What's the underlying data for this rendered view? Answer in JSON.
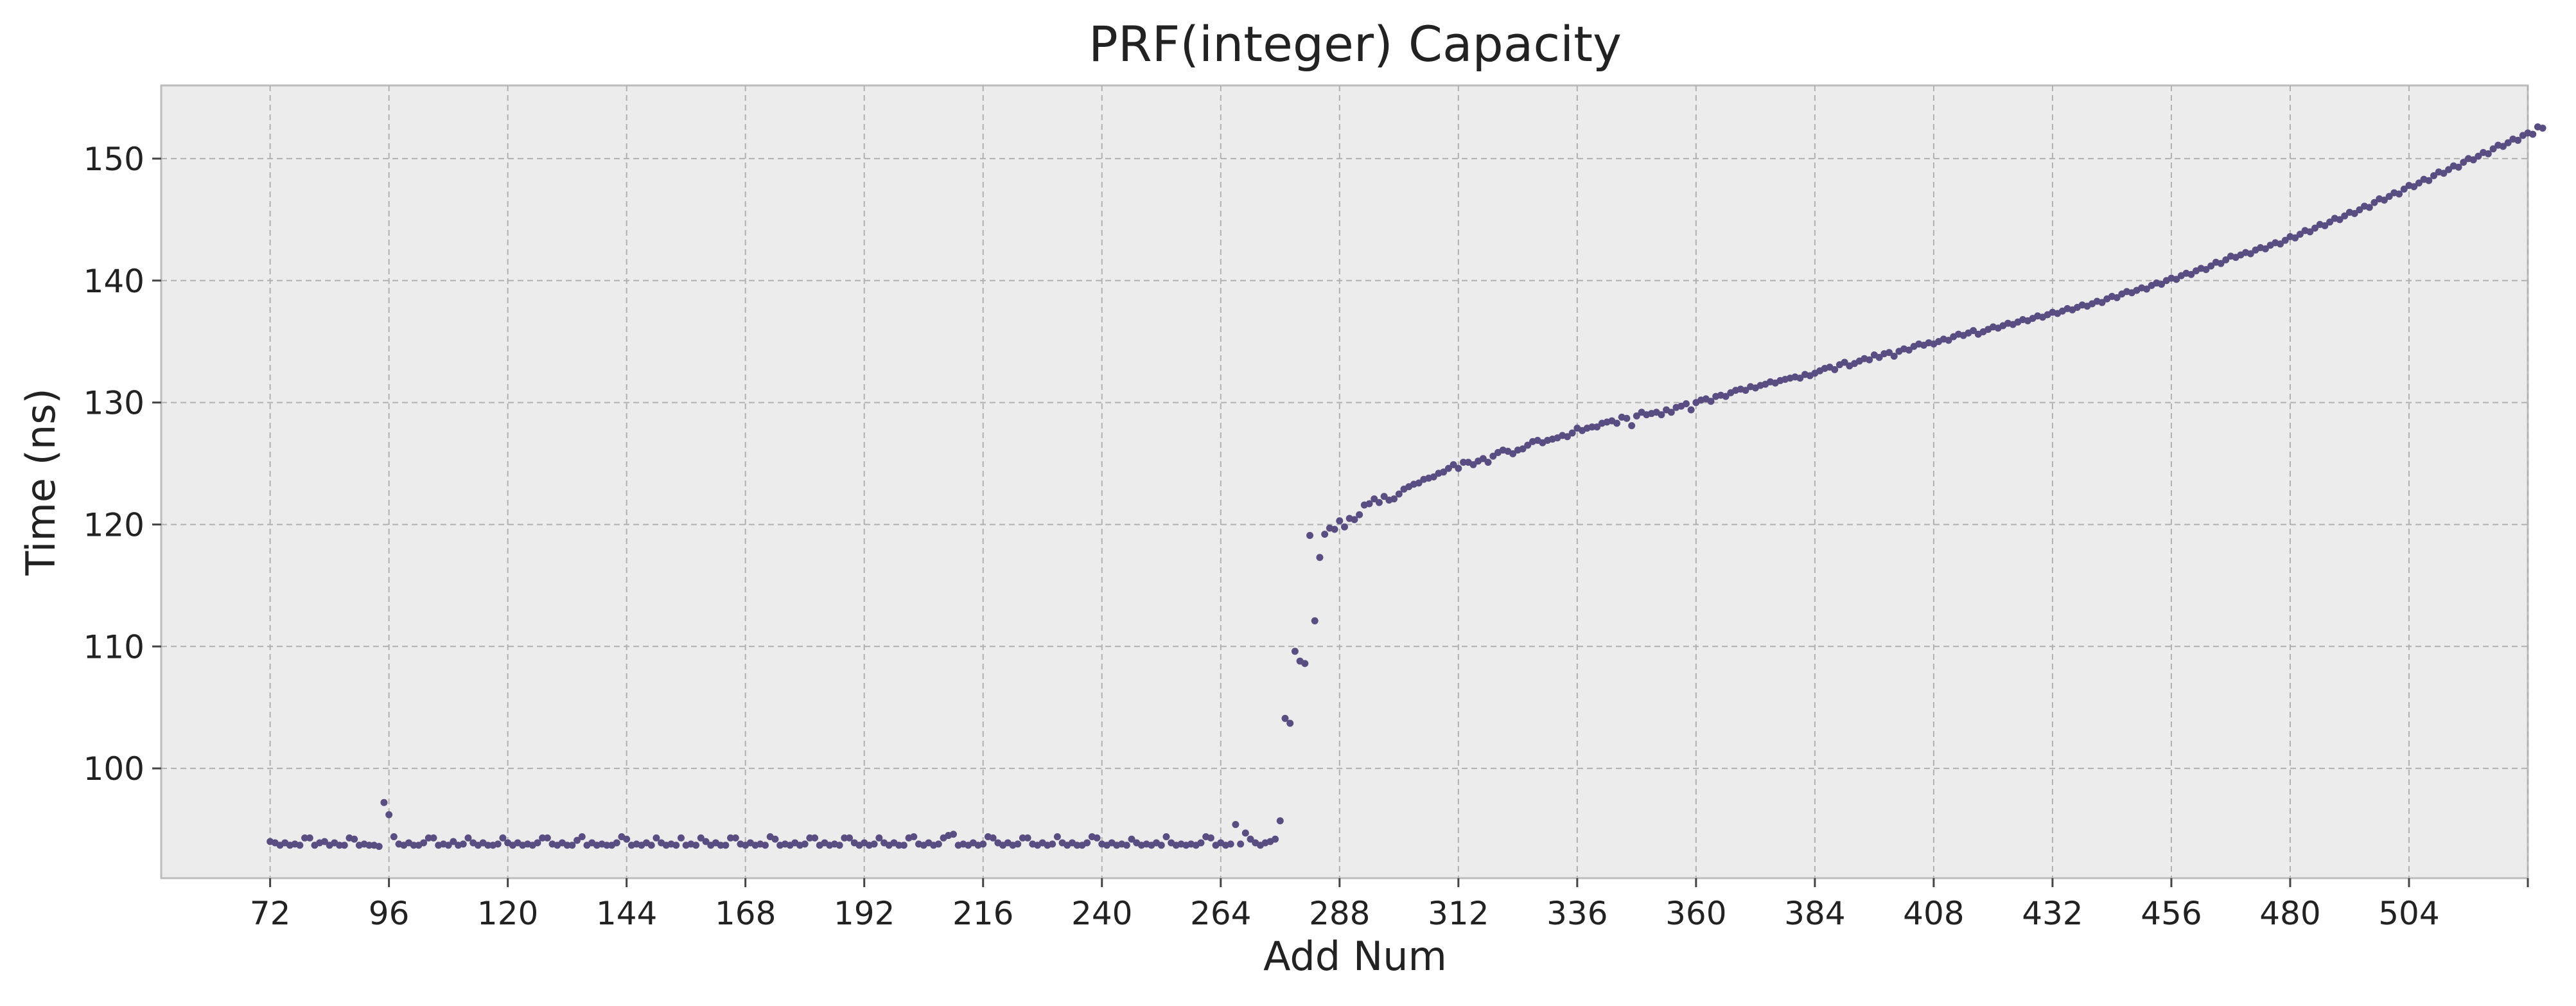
{
  "chart_data": {
    "type": "scatter",
    "title": "PRF(integer) Capacity",
    "xlabel": "Add Num",
    "ylabel": "Time (ns)",
    "xlim": [
      50,
      528
    ],
    "ylim": [
      91,
      156
    ],
    "xticks": [
      72,
      96,
      120,
      144,
      168,
      192,
      216,
      240,
      264,
      288,
      312,
      336,
      360,
      384,
      408,
      432,
      456,
      480,
      504
    ],
    "yticks": [
      100,
      110,
      120,
      130,
      140,
      150
    ],
    "grid": true,
    "marker_color": "#5a4d82",
    "background_color": "#ececec",
    "grid_color": "#b0b0b0",
    "series": [
      {
        "x_start": 72,
        "x_step": 1,
        "values": [
          94.0,
          93.9,
          93.7,
          93.9,
          93.7,
          93.8,
          93.7,
          94.3,
          94.3,
          93.7,
          93.9,
          94.0,
          93.7,
          93.9,
          93.7,
          93.7,
          94.3,
          94.2,
          93.7,
          93.8,
          93.7,
          93.7,
          93.6,
          97.2,
          96.2,
          94.4,
          93.8,
          93.7,
          93.9,
          93.7,
          93.7,
          93.9,
          94.3,
          94.3,
          93.7,
          93.8,
          93.7,
          94.0,
          93.7,
          93.8,
          94.3,
          93.9,
          93.7,
          93.9,
          93.7,
          93.7,
          93.8,
          94.3,
          93.9,
          93.7,
          93.9,
          93.7,
          93.8,
          93.7,
          93.9,
          94.3,
          94.3,
          93.8,
          93.7,
          93.9,
          93.7,
          93.7,
          94.1,
          94.4,
          93.7,
          93.9,
          93.7,
          93.8,
          93.7,
          93.7,
          93.9,
          94.4,
          94.2,
          93.7,
          93.8,
          93.7,
          93.9,
          93.7,
          94.3,
          93.9,
          93.7,
          93.8,
          93.7,
          94.3,
          93.7,
          93.8,
          93.7,
          94.3,
          94.0,
          93.7,
          93.9,
          93.7,
          93.7,
          94.3,
          94.3,
          93.8,
          93.7,
          93.9,
          93.7,
          93.8,
          93.7,
          94.4,
          94.2,
          93.7,
          93.8,
          93.7,
          93.9,
          93.7,
          93.8,
          94.3,
          94.3,
          93.7,
          93.9,
          93.7,
          93.8,
          93.7,
          94.3,
          94.3,
          93.9,
          93.7,
          93.9,
          93.7,
          93.8,
          94.3,
          93.9,
          93.7,
          93.9,
          93.7,
          93.7,
          94.3,
          94.4,
          93.8,
          93.7,
          93.9,
          93.7,
          93.8,
          94.3,
          94.5,
          94.6,
          93.7,
          93.8,
          93.7,
          93.9,
          93.7,
          93.8,
          94.4,
          94.3,
          93.9,
          93.7,
          93.9,
          93.7,
          93.8,
          94.3,
          94.3,
          93.8,
          93.7,
          93.9,
          93.7,
          93.8,
          94.4,
          93.9,
          93.7,
          93.9,
          93.7,
          93.7,
          93.9,
          94.4,
          94.3,
          93.8,
          93.7,
          93.9,
          93.7,
          93.8,
          93.7,
          94.2,
          93.9,
          93.7,
          93.8,
          93.7,
          93.9,
          93.7,
          94.4,
          93.9,
          93.7,
          93.8,
          93.7,
          93.8,
          93.7,
          93.9,
          94.4,
          94.3,
          93.7,
          93.9,
          93.7,
          93.8,
          95.4,
          93.8,
          94.7,
          94.2,
          93.9,
          93.7,
          93.9,
          94.0,
          94.2,
          95.7,
          104.1,
          103.7,
          109.6,
          108.8,
          108.6,
          119.1,
          112.1,
          117.3,
          119.2,
          119.7,
          119.6,
          120.3,
          119.8,
          120.5,
          120.4,
          120.8,
          121.6,
          121.7,
          122.1,
          121.8,
          122.3,
          122.0,
          122.1,
          122.5,
          122.9,
          123.1,
          123.3,
          123.4,
          123.7,
          123.8,
          123.9,
          124.2,
          124.3,
          124.6,
          124.9,
          124.6,
          125.1,
          125.1,
          124.9,
          125.2,
          125.4,
          125.1,
          125.6,
          125.9,
          126.1,
          126.0,
          125.8,
          126.1,
          126.2,
          126.5,
          126.8,
          126.9,
          126.7,
          126.9,
          127.0,
          127.1,
          127.3,
          127.2,
          127.5,
          127.9,
          127.7,
          127.9,
          128.0,
          128.0,
          128.3,
          128.4,
          128.5,
          128.3,
          128.8,
          128.7,
          128.1,
          128.9,
          129.2,
          129.0,
          129.1,
          129.2,
          129.0,
          129.4,
          129.2,
          129.6,
          129.7,
          129.9,
          129.4,
          130.0,
          130.2,
          130.3,
          130.1,
          130.5,
          130.6,
          130.5,
          130.8,
          131.0,
          131.1,
          131.0,
          131.3,
          131.2,
          131.4,
          131.5,
          131.7,
          131.6,
          131.8,
          131.9,
          132.0,
          132.1,
          132.0,
          132.3,
          132.2,
          132.4,
          132.6,
          132.8,
          132.9,
          132.7,
          133.1,
          133.3,
          133.0,
          133.2,
          133.4,
          133.6,
          133.5,
          133.9,
          133.7,
          134.0,
          134.1,
          133.8,
          134.2,
          134.4,
          134.3,
          134.6,
          134.8,
          134.7,
          134.9,
          134.8,
          135.0,
          135.2,
          135.1,
          135.4,
          135.6,
          135.5,
          135.7,
          135.9,
          135.6,
          135.8,
          136.0,
          136.2,
          136.1,
          136.3,
          136.5,
          136.4,
          136.6,
          136.8,
          136.7,
          136.9,
          137.1,
          137.0,
          137.2,
          137.4,
          137.3,
          137.5,
          137.7,
          137.6,
          137.8,
          138.0,
          137.9,
          138.1,
          138.3,
          138.2,
          138.5,
          138.7,
          138.6,
          138.9,
          139.1,
          139.0,
          139.2,
          139.4,
          139.3,
          139.6,
          139.8,
          139.7,
          140.0,
          140.2,
          140.1,
          140.4,
          140.6,
          140.5,
          140.8,
          141.0,
          140.9,
          141.2,
          141.5,
          141.4,
          141.7,
          142.0,
          141.9,
          142.1,
          142.3,
          142.2,
          142.5,
          142.7,
          142.6,
          142.9,
          143.1,
          143.0,
          143.3,
          143.6,
          143.5,
          143.8,
          144.1,
          144.0,
          144.3,
          144.6,
          144.5,
          144.8,
          145.1,
          145.0,
          145.3,
          145.6,
          145.5,
          145.8,
          146.1,
          146.0,
          146.4,
          146.7,
          146.6,
          146.9,
          147.2,
          147.1,
          147.5,
          147.8,
          147.7,
          148.0,
          148.3,
          148.2,
          148.6,
          148.9,
          148.8,
          149.1,
          149.4,
          149.3,
          149.7,
          150.0,
          149.9,
          150.2,
          150.5,
          150.4,
          150.8,
          151.1,
          151.0,
          151.3,
          151.6,
          151.5,
          151.9,
          152.1,
          152.0,
          152.6,
          152.5
        ]
      }
    ]
  }
}
